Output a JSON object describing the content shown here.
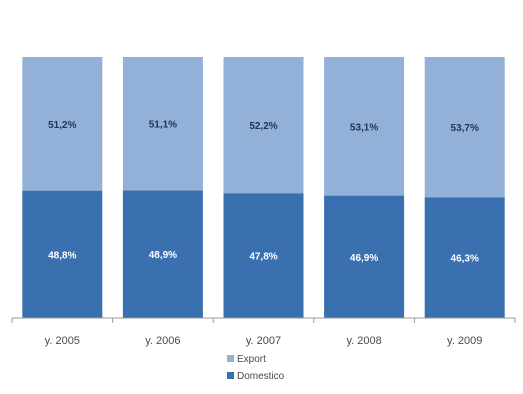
{
  "chart_data": {
    "type": "bar",
    "stacked": true,
    "percent": true,
    "categories": [
      "y. 2005",
      "y. 2006",
      "y. 2007",
      "y. 2008",
      "y. 2009"
    ],
    "series": [
      {
        "name": "Domestico",
        "values": [
          48.8,
          48.9,
          47.8,
          46.9,
          46.3
        ],
        "labels": [
          "48,8%",
          "48,9%",
          "47,8%",
          "46,9%",
          "46,3%"
        ],
        "color": "#3a6fb0",
        "label_color": "#ffffff"
      },
      {
        "name": "Export",
        "values": [
          51.2,
          51.1,
          52.2,
          53.1,
          53.7
        ],
        "labels": [
          "51,2%",
          "51,1%",
          "52,2%",
          "53,1%",
          "53,7%"
        ],
        "color": "#92b0d8",
        "label_color": "#1f3552"
      }
    ],
    "ylim": [
      0,
      100
    ],
    "grid": false,
    "legend": {
      "position": "bottom",
      "order": [
        "Export",
        "Domestico"
      ]
    },
    "axis_color": "#9a9a9a"
  }
}
